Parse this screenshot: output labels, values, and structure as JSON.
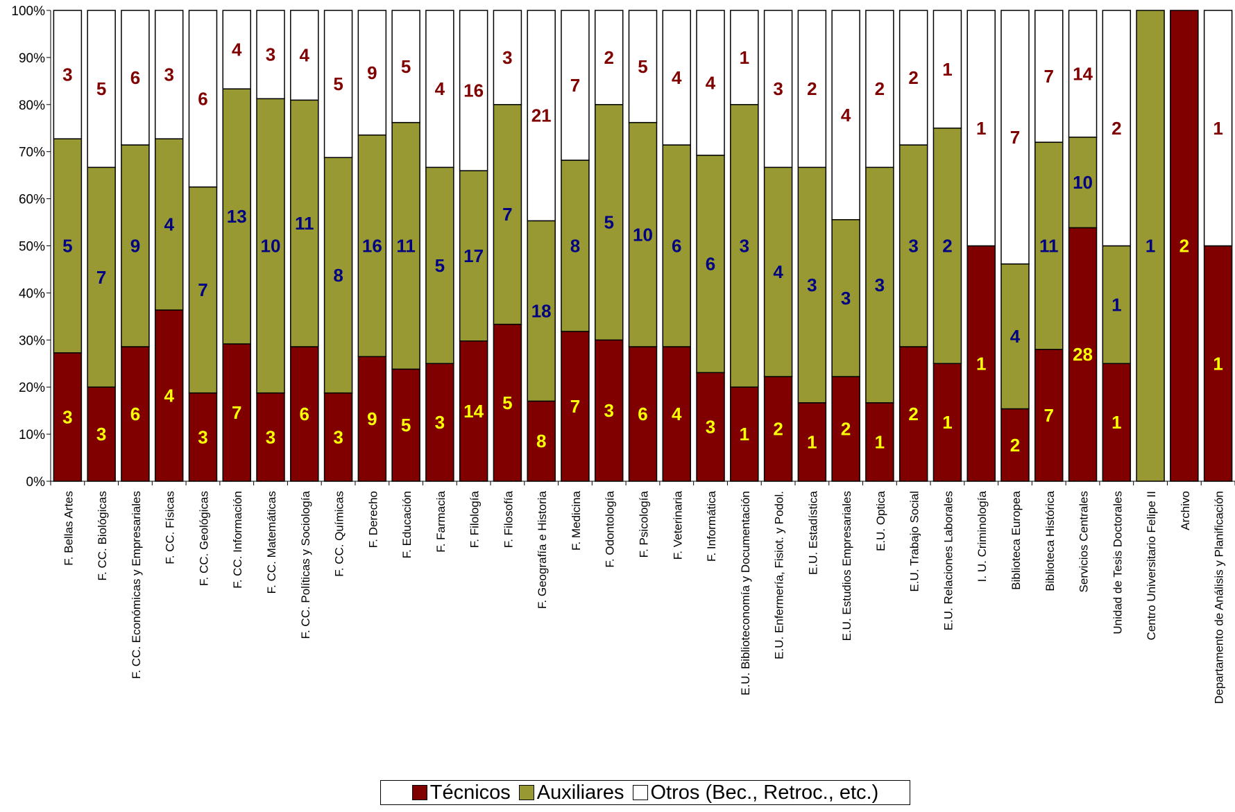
{
  "chart_data": {
    "type": "bar",
    "stacked": "percent",
    "y_ticks": [
      "0%",
      "10%",
      "20%",
      "30%",
      "40%",
      "50%",
      "60%",
      "70%",
      "80%",
      "90%",
      "100%"
    ],
    "ylim": [
      0,
      100
    ],
    "categories": [
      "F. Bellas Artes",
      "F. CC. Biológicas",
      "F. CC. Económicas y Empresariales",
      "F. CC. Físicas",
      "F. CC. Geológicas",
      "F. CC. Información",
      "F. CC. Matemáticas",
      "F. CC. Políticas y Sociología",
      "F. CC. Químicas",
      "F. Derecho",
      "F. Educación",
      "F. Farmacia",
      "F. Filología",
      "F. Filosofía",
      "F. Geografía e Historia",
      "F. Medicina",
      "F. Odontología",
      "F. Psicología",
      "F. Veterinaria",
      "F. Informática",
      "E.U. Biblioteconomía y Documentación",
      "E.U. Enfermería, Fisiot. y Podol.",
      "E.U. Estadística",
      "E.U. Estudios Empresariales",
      "E.U. Optica",
      "E.U. Trabajo Social",
      "E.U. Relaciones Laborales",
      "I. U. Criminología",
      "Biblioteca Europea",
      "Biblioteca Histórica",
      "Servicios Centrales",
      "Unidad de Tesis Doctorales",
      "Centro Universitario Felipe II",
      "Archivo",
      "Departamento de Análisis y Planificación"
    ],
    "series": [
      {
        "name": "Técnicos",
        "color": "#800000",
        "label_color": "#ffff00",
        "values": [
          3,
          3,
          6,
          4,
          3,
          7,
          3,
          6,
          3,
          9,
          5,
          3,
          14,
          5,
          8,
          7,
          3,
          6,
          4,
          3,
          1,
          2,
          1,
          2,
          1,
          2,
          1,
          1,
          2,
          7,
          28,
          1,
          0,
          2,
          1
        ]
      },
      {
        "name": "Auxiliares",
        "color": "#999933",
        "label_color": "#000080",
        "values": [
          5,
          7,
          9,
          4,
          7,
          13,
          10,
          11,
          8,
          16,
          11,
          5,
          17,
          7,
          18,
          8,
          5,
          10,
          6,
          6,
          3,
          4,
          3,
          3,
          3,
          3,
          2,
          0,
          4,
          11,
          10,
          1,
          1,
          0,
          0
        ]
      },
      {
        "name": "Otros (Bec., Retroc., etc.)",
        "color": "#ffffff",
        "label_color": "#800000",
        "values": [
          3,
          5,
          6,
          3,
          6,
          4,
          3,
          4,
          5,
          9,
          5,
          4,
          16,
          3,
          21,
          7,
          2,
          5,
          4,
          4,
          1,
          3,
          2,
          4,
          2,
          2,
          1,
          1,
          7,
          7,
          14,
          2,
          0,
          0,
          1
        ]
      }
    ],
    "legend_position": "bottom",
    "grid": false
  },
  "legend": {
    "items": [
      {
        "label": "Técnicos",
        "color": "#800000"
      },
      {
        "label": "Auxiliares",
        "color": "#999933"
      },
      {
        "label": "Otros (Bec., Retroc., etc.)",
        "color": "#ffffff"
      }
    ]
  }
}
